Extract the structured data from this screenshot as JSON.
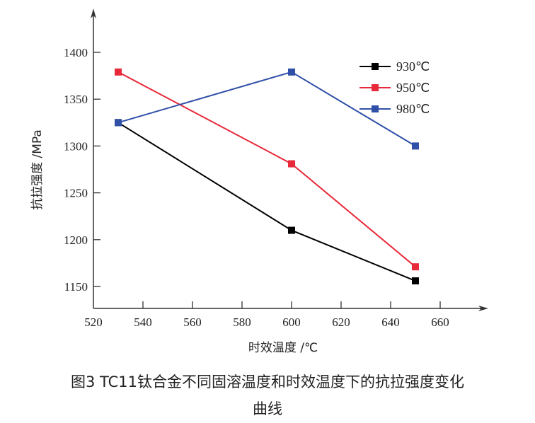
{
  "chart_data": {
    "type": "line",
    "xlabel": "时效温度 /℃",
    "ylabel": "抗拉强度 /MPa",
    "xlim": [
      520,
      680
    ],
    "ylim": [
      1120,
      1450
    ],
    "xticks": [
      520,
      540,
      560,
      580,
      600,
      620,
      640,
      660
    ],
    "yticks": [
      1150,
      1200,
      1250,
      1300,
      1350,
      1400
    ],
    "x": [
      530,
      600,
      650
    ],
    "legend_position": "top-right",
    "grid": false,
    "series": [
      {
        "name": "930℃",
        "color": "#000000",
        "values": [
          1325,
          1210,
          1156
        ]
      },
      {
        "name": "950℃",
        "color": "#e8293a",
        "values": [
          1379,
          1281,
          1171
        ]
      },
      {
        "name": "980℃",
        "color": "#3050a8",
        "values": [
          1325,
          1379,
          1300
        ]
      }
    ]
  },
  "caption": {
    "line1": "图3  TC11钛合金不同固溶温度和时效温度下的抗拉强度变化",
    "line2": "曲线"
  }
}
